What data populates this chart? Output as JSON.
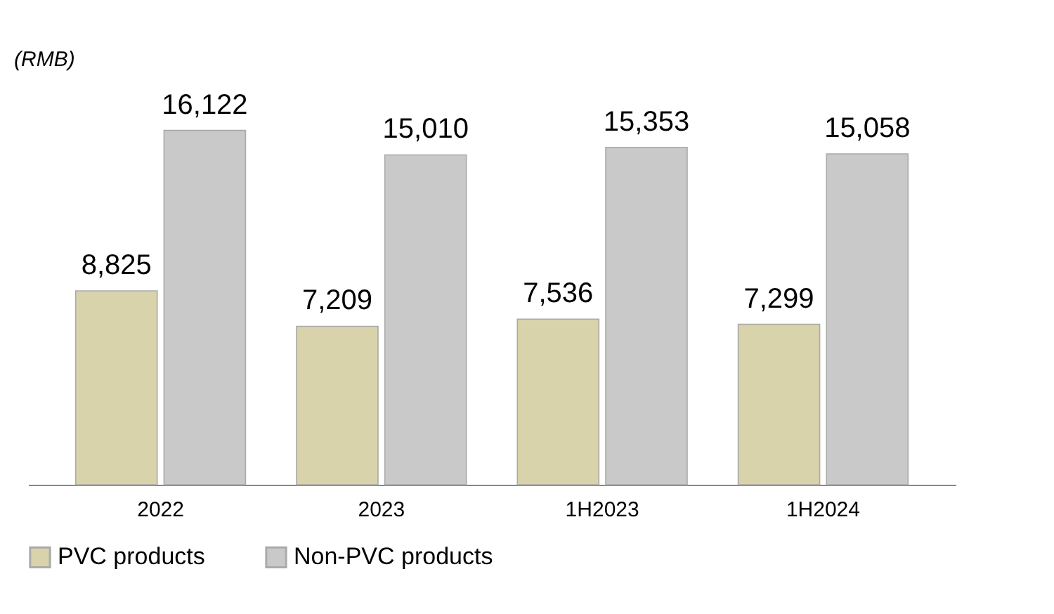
{
  "chart_data": {
    "type": "bar",
    "ylabel": "(RMB)",
    "categories": [
      "2022",
      "2023",
      "1H2023",
      "1H2024"
    ],
    "series": [
      {
        "name": "PVC products",
        "color": "#d8d3ab",
        "values": [
          8825,
          7209,
          7536,
          7299
        ],
        "value_labels": [
          "8,825",
          "7,209",
          "7,536",
          "7,299"
        ]
      },
      {
        "name": "Non-PVC products",
        "color": "#c9c9c9",
        "values": [
          16122,
          15010,
          15353,
          15058
        ],
        "value_labels": [
          "16,122",
          "15,010",
          "15,353",
          "15,058"
        ]
      }
    ],
    "legend": "bottom"
  }
}
